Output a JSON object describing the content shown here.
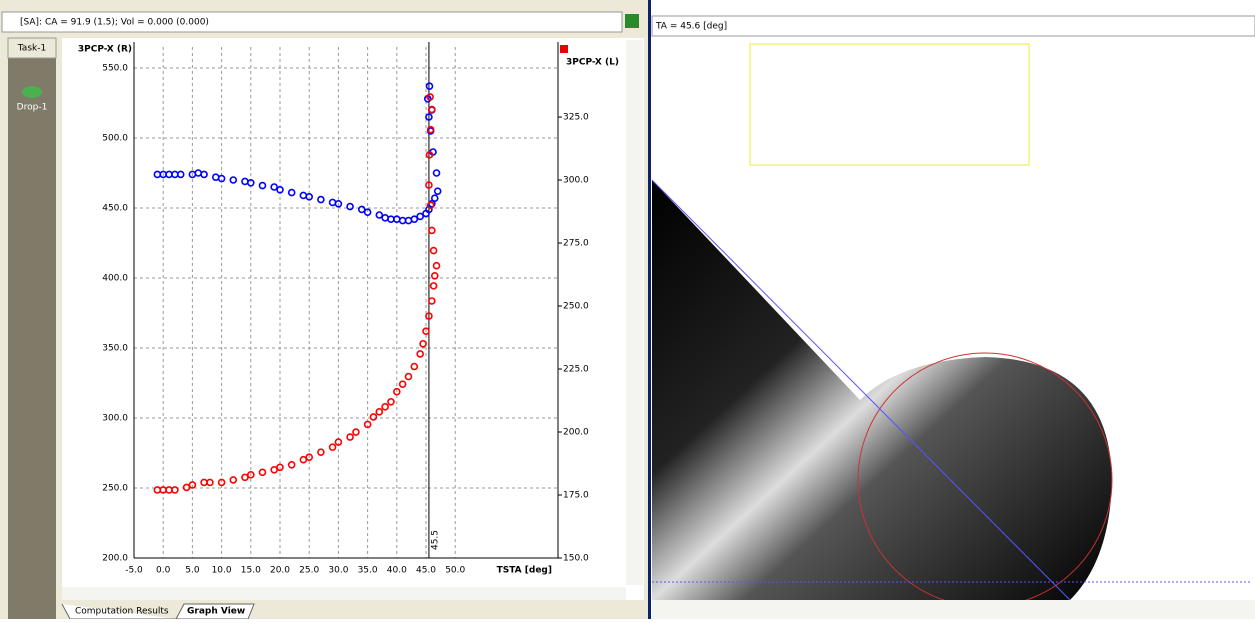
{
  "left_panel": {
    "status": "[SA]: CA = 91.9 (1.5); Vol = 0.000 (0.000)",
    "task_tab": "Task-1",
    "item": "Drop-1",
    "tabs": [
      "Computation Results",
      "Graph View"
    ]
  },
  "right_panel": {
    "status": "TA = 45.6 [deg]"
  },
  "chart_data": {
    "type": "scatter",
    "xlabel": "TSTA [deg]",
    "ylabel": "3PCP-X (R)",
    "y2label": "3PCP-X (L)",
    "xlim": [
      -5,
      67.6
    ],
    "ylim": [
      200,
      565
    ],
    "y2lim": [
      150,
      352.8
    ],
    "grid": true,
    "vline": 45.5,
    "xticks": [
      {
        "value": -5,
        "label": "-5.0"
      },
      {
        "value": 0,
        "label": "0.0"
      },
      {
        "value": 5,
        "label": "5.0"
      },
      {
        "value": 10,
        "label": "10.0"
      },
      {
        "value": 15,
        "label": "15.0"
      },
      {
        "value": 20,
        "label": "20.0"
      },
      {
        "value": 25,
        "label": "25.0"
      },
      {
        "value": 30,
        "label": "30.0"
      },
      {
        "value": 35,
        "label": "35.0"
      },
      {
        "value": 40,
        "label": "40.0"
      },
      {
        "value": 45,
        "label": "45.0"
      },
      {
        "value": 50,
        "label": "50.0"
      }
    ],
    "yticks": [
      {
        "value": 200,
        "label": "200.0"
      },
      {
        "value": 250,
        "label": "250.0"
      },
      {
        "value": 300,
        "label": "300.0"
      },
      {
        "value": 350,
        "label": "350.0"
      },
      {
        "value": 400,
        "label": "400.0"
      },
      {
        "value": 450,
        "label": "450.0"
      },
      {
        "value": 500,
        "label": "500.0"
      },
      {
        "value": 550,
        "label": "550.0"
      }
    ],
    "y2ticks": [
      {
        "value": 150,
        "label": "150.0"
      },
      {
        "value": 175,
        "label": "175.0"
      },
      {
        "value": 200,
        "label": "200.0"
      },
      {
        "value": 225,
        "label": "225.0"
      },
      {
        "value": 250,
        "label": "250.0"
      },
      {
        "value": 275,
        "label": "275.0"
      },
      {
        "value": 300,
        "label": "300.0"
      },
      {
        "value": 325,
        "label": "325.0"
      }
    ],
    "series": [
      {
        "color": "#0000ff",
        "axis": "y",
        "x": [
          -1,
          0,
          1,
          2,
          3,
          5,
          6,
          7,
          9,
          10,
          12,
          14,
          15,
          17,
          19,
          20,
          22,
          24,
          25,
          27,
          29,
          30,
          32,
          34,
          35,
          37,
          38,
          39,
          40,
          41,
          42,
          43,
          44,
          45,
          45.5,
          46,
          46.5,
          47,
          46.8,
          46.2,
          45.8,
          45.5,
          45.3,
          45.6,
          46
        ],
        "values": [
          474,
          474,
          474,
          474,
          474,
          474,
          475,
          474,
          472,
          471,
          470,
          469,
          468,
          466,
          465,
          463,
          461,
          459,
          458,
          456,
          454,
          453,
          451,
          449,
          447,
          445,
          443,
          442,
          442,
          441,
          441,
          442,
          444,
          446,
          449,
          453,
          457,
          462,
          475,
          490,
          505,
          515,
          528,
          537,
          520
        ]
      },
      {
        "color": "#ff0000",
        "axis": "y2",
        "x": [
          -1,
          0,
          1,
          2,
          4,
          5,
          7,
          8,
          10,
          12,
          14,
          15,
          17,
          19,
          20,
          22,
          24,
          25,
          27,
          29,
          30,
          32,
          33,
          35,
          36,
          37,
          38,
          39,
          40,
          41,
          42,
          43,
          44,
          44.5,
          45,
          45.5,
          46,
          46.3,
          46.5,
          46.8,
          46.3,
          46,
          45.8,
          45.5,
          45.6,
          45.8,
          46,
          45.7
        ],
        "values": [
          177,
          177,
          177,
          177,
          178,
          179,
          180,
          180,
          180,
          181,
          182,
          183,
          184,
          185,
          186,
          187,
          189,
          190,
          192,
          194,
          196,
          198,
          200,
          203,
          206,
          208,
          210,
          212,
          216,
          219,
          222,
          226,
          231,
          235,
          240,
          246,
          252,
          258,
          262,
          266,
          272,
          280,
          290,
          298,
          310,
          320,
          328,
          333
        ]
      }
    ]
  }
}
